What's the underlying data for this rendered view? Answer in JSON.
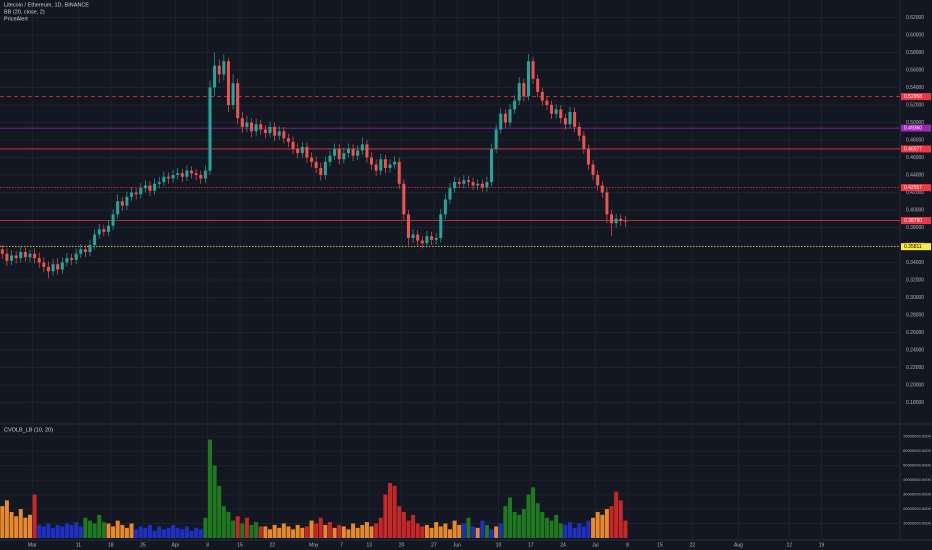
{
  "chart_data": {
    "type": "candlestick",
    "title": "Litecoin / Ethereum, 1D, BINANCE",
    "indicators": [
      "BB (20, close, 2)",
      "PriceAlert"
    ],
    "up_color": "#26a69a",
    "down_color": "#ef5350",
    "x": [
      "02-22",
      "02-23",
      "02-24",
      "02-25",
      "02-26",
      "02-27",
      "02-28",
      "03-01",
      "03-02",
      "03-03",
      "03-04",
      "03-05",
      "03-06",
      "03-07",
      "03-08",
      "03-09",
      "03-10",
      "03-11",
      "03-12",
      "03-13",
      "03-14",
      "03-15",
      "03-16",
      "03-17",
      "03-18",
      "03-19",
      "03-20",
      "03-21",
      "03-22",
      "03-23",
      "03-24",
      "03-25",
      "03-26",
      "03-27",
      "03-28",
      "03-29",
      "03-30",
      "03-31",
      "04-01",
      "04-02",
      "04-03",
      "04-04",
      "04-05",
      "04-06",
      "04-07",
      "04-08",
      "04-09",
      "04-10",
      "04-11",
      "04-12",
      "04-13",
      "04-14",
      "04-15",
      "04-16",
      "04-17",
      "04-18",
      "04-19",
      "04-20",
      "04-21",
      "04-22",
      "04-23",
      "04-24",
      "04-25",
      "04-26",
      "04-27",
      "04-28",
      "04-29",
      "04-30",
      "05-01",
      "05-02",
      "05-03",
      "05-04",
      "05-05",
      "05-06",
      "05-07",
      "05-08",
      "05-09",
      "05-10",
      "05-11",
      "05-12",
      "05-13",
      "05-14",
      "05-15",
      "05-16",
      "05-17",
      "05-18",
      "05-19",
      "05-20",
      "05-21",
      "05-22",
      "05-23",
      "05-24",
      "05-25",
      "05-26",
      "05-27",
      "05-28",
      "05-29",
      "05-30",
      "05-31",
      "06-01",
      "06-02",
      "06-03",
      "06-04",
      "06-05",
      "06-06",
      "06-07",
      "06-08",
      "06-09",
      "06-10",
      "06-11",
      "06-12",
      "06-13",
      "06-14",
      "06-15",
      "06-16",
      "06-17",
      "06-18",
      "06-19",
      "06-20",
      "06-21",
      "06-22",
      "06-23",
      "06-24",
      "06-25",
      "06-26",
      "06-27",
      "06-28",
      "06-29",
      "06-30",
      "07-01",
      "07-02",
      "07-03",
      "07-04",
      "07-05",
      "07-06",
      "07-07"
    ],
    "open": [
      0.355,
      0.35,
      0.342,
      0.348,
      0.345,
      0.352,
      0.346,
      0.35,
      0.345,
      0.34,
      0.335,
      0.33,
      0.338,
      0.332,
      0.34,
      0.345,
      0.343,
      0.35,
      0.355,
      0.352,
      0.36,
      0.372,
      0.378,
      0.375,
      0.382,
      0.395,
      0.41,
      0.405,
      0.415,
      0.42,
      0.418,
      0.425,
      0.428,
      0.422,
      0.43,
      0.432,
      0.438,
      0.436,
      0.44,
      0.442,
      0.438,
      0.445,
      0.442,
      0.44,
      0.436,
      0.445,
      0.54,
      0.565,
      0.555,
      0.57,
      0.52,
      0.545,
      0.505,
      0.495,
      0.5,
      0.49,
      0.498,
      0.492,
      0.488,
      0.495,
      0.485,
      0.49,
      0.482,
      0.478,
      0.47,
      0.465,
      0.472,
      0.46,
      0.455,
      0.448,
      0.44,
      0.455,
      0.462,
      0.47,
      0.458,
      0.465,
      0.47,
      0.462,
      0.468,
      0.475,
      0.46,
      0.452,
      0.445,
      0.458,
      0.448,
      0.452,
      0.455,
      0.43,
      0.395,
      0.368,
      0.372,
      0.365,
      0.362,
      0.37,
      0.366,
      0.368,
      0.395,
      0.412,
      0.425,
      0.432,
      0.43,
      0.434,
      0.432,
      0.428,
      0.43,
      0.426,
      0.432,
      0.47,
      0.492,
      0.51,
      0.5,
      0.515,
      0.525,
      0.545,
      0.53,
      0.57,
      0.55,
      0.535,
      0.525,
      0.52,
      0.51,
      0.515,
      0.505,
      0.498,
      0.512,
      0.495,
      0.485,
      0.47,
      0.452,
      0.44,
      0.428,
      0.42,
      0.395,
      0.385,
      0.39,
      0.388
    ],
    "high": [
      0.36,
      0.356,
      0.354,
      0.353,
      0.358,
      0.357,
      0.355,
      0.356,
      0.351,
      0.346,
      0.341,
      0.344,
      0.345,
      0.346,
      0.351,
      0.35,
      0.356,
      0.361,
      0.36,
      0.366,
      0.378,
      0.384,
      0.383,
      0.388,
      0.401,
      0.418,
      0.415,
      0.421,
      0.426,
      0.425,
      0.431,
      0.434,
      0.433,
      0.436,
      0.438,
      0.444,
      0.443,
      0.446,
      0.448,
      0.447,
      0.451,
      0.45,
      0.447,
      0.445,
      0.451,
      0.548,
      0.58,
      0.572,
      0.578,
      0.574,
      0.555,
      0.55,
      0.512,
      0.508,
      0.505,
      0.504,
      0.503,
      0.497,
      0.501,
      0.5,
      0.496,
      0.495,
      0.487,
      0.484,
      0.476,
      0.478,
      0.477,
      0.466,
      0.461,
      0.454,
      0.461,
      0.468,
      0.476,
      0.475,
      0.471,
      0.476,
      0.475,
      0.474,
      0.483,
      0.48,
      0.466,
      0.458,
      0.464,
      0.463,
      0.458,
      0.461,
      0.46,
      0.435,
      0.4,
      0.378,
      0.377,
      0.37,
      0.376,
      0.375,
      0.374,
      0.401,
      0.418,
      0.431,
      0.438,
      0.437,
      0.44,
      0.439,
      0.437,
      0.435,
      0.435,
      0.438,
      0.476,
      0.498,
      0.516,
      0.515,
      0.521,
      0.531,
      0.552,
      0.55,
      0.578,
      0.575,
      0.555,
      0.54,
      0.53,
      0.525,
      0.521,
      0.52,
      0.51,
      0.518,
      0.517,
      0.5,
      0.49,
      0.475,
      0.457,
      0.445,
      0.433,
      0.425,
      0.4,
      0.396,
      0.395,
      0.393
    ],
    "low": [
      0.344,
      0.336,
      0.337,
      0.339,
      0.34,
      0.341,
      0.34,
      0.339,
      0.334,
      0.329,
      0.322,
      0.325,
      0.326,
      0.327,
      0.335,
      0.337,
      0.338,
      0.345,
      0.346,
      0.347,
      0.355,
      0.367,
      0.37,
      0.37,
      0.377,
      0.39,
      0.399,
      0.4,
      0.41,
      0.412,
      0.413,
      0.42,
      0.416,
      0.417,
      0.425,
      0.427,
      0.43,
      0.431,
      0.435,
      0.432,
      0.433,
      0.436,
      0.434,
      0.43,
      0.431,
      0.44,
      0.53,
      0.545,
      0.548,
      0.512,
      0.515,
      0.498,
      0.488,
      0.489,
      0.483,
      0.484,
      0.486,
      0.482,
      0.483,
      0.479,
      0.48,
      0.476,
      0.472,
      0.464,
      0.459,
      0.46,
      0.454,
      0.449,
      0.442,
      0.434,
      0.435,
      0.45,
      0.457,
      0.452,
      0.453,
      0.46,
      0.456,
      0.457,
      0.463,
      0.454,
      0.446,
      0.439,
      0.44,
      0.442,
      0.443,
      0.447,
      0.424,
      0.389,
      0.36,
      0.362,
      0.359,
      0.356,
      0.357,
      0.36,
      0.361,
      0.363,
      0.39,
      0.407,
      0.42,
      0.425,
      0.425,
      0.427,
      0.423,
      0.423,
      0.421,
      0.421,
      0.427,
      0.465,
      0.487,
      0.494,
      0.495,
      0.51,
      0.52,
      0.524,
      0.525,
      0.544,
      0.529,
      0.519,
      0.514,
      0.504,
      0.505,
      0.499,
      0.492,
      0.493,
      0.489,
      0.479,
      0.464,
      0.446,
      0.434,
      0.422,
      0.414,
      0.385,
      0.37,
      0.38,
      0.382,
      0.381
    ],
    "close": [
      0.35,
      0.342,
      0.348,
      0.345,
      0.352,
      0.346,
      0.35,
      0.345,
      0.34,
      0.335,
      0.33,
      0.338,
      0.332,
      0.34,
      0.345,
      0.343,
      0.35,
      0.355,
      0.352,
      0.36,
      0.372,
      0.378,
      0.375,
      0.382,
      0.395,
      0.41,
      0.405,
      0.415,
      0.42,
      0.418,
      0.425,
      0.428,
      0.422,
      0.43,
      0.432,
      0.438,
      0.436,
      0.44,
      0.442,
      0.438,
      0.445,
      0.442,
      0.44,
      0.436,
      0.445,
      0.54,
      0.565,
      0.555,
      0.57,
      0.52,
      0.545,
      0.505,
      0.495,
      0.5,
      0.49,
      0.498,
      0.492,
      0.488,
      0.495,
      0.485,
      0.49,
      0.482,
      0.478,
      0.47,
      0.465,
      0.472,
      0.46,
      0.455,
      0.448,
      0.44,
      0.455,
      0.462,
      0.47,
      0.458,
      0.465,
      0.47,
      0.462,
      0.468,
      0.475,
      0.46,
      0.452,
      0.445,
      0.458,
      0.448,
      0.452,
      0.455,
      0.43,
      0.395,
      0.368,
      0.372,
      0.365,
      0.362,
      0.37,
      0.366,
      0.368,
      0.395,
      0.412,
      0.425,
      0.432,
      0.43,
      0.434,
      0.432,
      0.428,
      0.43,
      0.426,
      0.432,
      0.47,
      0.492,
      0.51,
      0.5,
      0.515,
      0.525,
      0.545,
      0.53,
      0.57,
      0.55,
      0.535,
      0.525,
      0.52,
      0.51,
      0.515,
      0.505,
      0.498,
      0.512,
      0.495,
      0.485,
      0.47,
      0.452,
      0.44,
      0.428,
      0.42,
      0.395,
      0.385,
      0.39,
      0.388,
      0.387
    ],
    "xlim": [
      "02-22",
      "09-05"
    ],
    "xticks": [
      {
        "value": "03-01",
        "label": "Mar"
      },
      {
        "value": "03-11",
        "label": "11"
      },
      {
        "value": "03-18",
        "label": "18"
      },
      {
        "value": "03-25",
        "label": "25"
      },
      {
        "value": "04-01",
        "label": "Apr"
      },
      {
        "value": "04-08",
        "label": "8"
      },
      {
        "value": "04-15",
        "label": "15"
      },
      {
        "value": "04-22",
        "label": "22"
      },
      {
        "value": "05-01",
        "label": "May"
      },
      {
        "value": "05-07",
        "label": "7"
      },
      {
        "value": "05-13",
        "label": "13"
      },
      {
        "value": "05-20",
        "label": "20"
      },
      {
        "value": "05-27",
        "label": "27"
      },
      {
        "value": "06-01",
        "label": "Jun"
      },
      {
        "value": "06-10",
        "label": "10"
      },
      {
        "value": "06-17",
        "label": "17"
      },
      {
        "value": "06-24",
        "label": "24"
      },
      {
        "value": "07-01",
        "label": "Jul"
      },
      {
        "value": "07-08",
        "label": "8"
      },
      {
        "value": "07-15",
        "label": "15"
      },
      {
        "value": "07-22",
        "label": "22"
      },
      {
        "value": "08-01",
        "label": "Aug"
      },
      {
        "value": "08-12",
        "label": "12"
      },
      {
        "value": "08-19",
        "label": "19"
      }
    ],
    "ylim": [
      0.16,
      0.64
    ],
    "yticks": [
      {
        "value": 0.18,
        "label": "0.18000"
      },
      {
        "value": 0.2,
        "label": "0.20000"
      },
      {
        "value": 0.22,
        "label": "0.22000"
      },
      {
        "value": 0.24,
        "label": "0.24000"
      },
      {
        "value": 0.26,
        "label": "0.26000"
      },
      {
        "value": 0.28,
        "label": "0.28000"
      },
      {
        "value": 0.3,
        "label": "0.30000"
      },
      {
        "value": 0.32,
        "label": "0.32000"
      },
      {
        "value": 0.34,
        "label": "0.34000"
      },
      {
        "value": 0.36,
        "label": "0.36000"
      },
      {
        "value": 0.38,
        "label": "0.38000"
      },
      {
        "value": 0.4,
        "label": "0.40000"
      },
      {
        "value": 0.42,
        "label": "0.42000"
      },
      {
        "value": 0.44,
        "label": "0.44000"
      },
      {
        "value": 0.46,
        "label": "0.46000"
      },
      {
        "value": 0.48,
        "label": "0.48000"
      },
      {
        "value": 0.5,
        "label": "0.50000"
      },
      {
        "value": 0.52,
        "label": "0.52000"
      },
      {
        "value": 0.54,
        "label": "0.54000"
      },
      {
        "value": 0.56,
        "label": "0.56000"
      },
      {
        "value": 0.58,
        "label": "0.58000"
      },
      {
        "value": 0.6,
        "label": "0.60000"
      },
      {
        "value": 0.62,
        "label": "0.62000"
      }
    ],
    "grid": true,
    "levels": [
      {
        "value": 0.52958,
        "color": "#f23645",
        "style": "dashed"
      },
      {
        "value": 0.4936,
        "label": "0.49360",
        "color": "#9c27b0",
        "style": "solid"
      },
      {
        "value": 0.46977,
        "color": "#f23645",
        "style": "solid"
      },
      {
        "value": 0.42557,
        "color": "#f23645",
        "style": "dotted"
      },
      {
        "value": 0.3879,
        "label": "0.38790",
        "color": "#f23645",
        "style": "solid"
      },
      {
        "value": 0.35811,
        "color": "#ffeb3b",
        "style": "dotted"
      }
    ],
    "volume": {
      "title": "CVOLB_LB (10, 20)",
      "values": [
        22000000.0,
        26000000.0,
        18000000.0,
        15000000.0,
        20000000.0,
        14000000.0,
        16000000.0,
        30000000.0,
        9000000.0,
        8000000.0,
        10000000.0,
        7000000.0,
        9000000.0,
        8000000.0,
        10000000.0,
        9000000.0,
        11000000.0,
        8000000.0,
        14000000.0,
        12000000.0,
        10000000.0,
        16000000.0,
        11000000.0,
        10000000.0,
        8000000.0,
        12000000.0,
        9000000.0,
        7000000.0,
        10000000.0,
        6000000.0,
        8000000.0,
        7000000.0,
        9000000.0,
        5000000.0,
        8000000.0,
        6000000.0,
        7000000.0,
        9000000.0,
        7000000.0,
        6000000.0,
        8000000.0,
        5000000.0,
        7000000.0,
        6000000.0,
        14000000.0,
        68000000.0,
        50000000.0,
        36000000.0,
        22000000.0,
        18000000.0,
        12000000.0,
        15000000.0,
        10000000.0,
        14000000.0,
        9000000.0,
        11000000.0,
        8000000.0,
        8000000.0,
        6000000.0,
        9000000.0,
        7000000.0,
        10000000.0,
        8000000.0,
        6000000.0,
        9000000.0,
        7000000.0,
        8000000.0,
        12000000.0,
        10000000.0,
        14000000.0,
        9000000.0,
        11000000.0,
        7000000.0,
        9000000.0,
        8000000.0,
        6000000.0,
        10000000.0,
        7000000.0,
        9000000.0,
        11000000.0,
        8000000.0,
        10000000.0,
        14000000.0,
        30000000.0,
        38000000.0,
        36000000.0,
        22000000.0,
        18000000.0,
        12000000.0,
        16000000.0,
        10000000.0,
        8000000.0,
        9000000.0,
        7000000.0,
        11000000.0,
        8000000.0,
        10000000.0,
        6000000.0,
        12000000.0,
        9000000.0,
        10000000.0,
        14000000.0,
        8000000.0,
        7000000.0,
        12000000.0,
        9000000.0,
        6000000.0,
        8000000.0,
        10000000.0,
        22000000.0,
        28000000.0,
        18000000.0,
        16000000.0,
        20000000.0,
        30000000.0,
        35000000.0,
        24000000.0,
        18000000.0,
        14000000.0,
        12000000.0,
        16000000.0,
        10000000.0,
        9000000.0,
        11000000.0,
        7000000.0,
        10000000.0,
        8000000.0,
        12000000.0,
        14000000.0,
        18000000.0,
        16000000.0,
        20000000.0,
        22000000.0,
        32000000.0,
        26000000.0,
        12000000.0
      ],
      "colors": [
        "#e8892c",
        "#e8892c",
        "#e8892c",
        "#e8892c",
        "#e8892c",
        "#e8892c",
        "#e8892c",
        "#c62828",
        "#1e2fc4",
        "#1e2fc4",
        "#1e2fc4",
        "#1e2fc4",
        "#1e2fc4",
        "#1e2fc4",
        "#1e2fc4",
        "#1e2fc4",
        "#1e2fc4",
        "#1e2fc4",
        "#1f7a1f",
        "#1f7a1f",
        "#1f7a1f",
        "#1f7a1f",
        "#1f7a1f",
        "#e8892c",
        "#e8892c",
        "#e8892c",
        "#e8892c",
        "#e8892c",
        "#e8892c",
        "#1e2fc4",
        "#1e2fc4",
        "#1e2fc4",
        "#1e2fc4",
        "#1e2fc4",
        "#1e2fc4",
        "#1e2fc4",
        "#1e2fc4",
        "#1e2fc4",
        "#1e2fc4",
        "#1e2fc4",
        "#1e2fc4",
        "#1e2fc4",
        "#1e2fc4",
        "#1e2fc4",
        "#1f7a1f",
        "#1f7a1f",
        "#1f7a1f",
        "#1f7a1f",
        "#1f7a1f",
        "#1f7a1f",
        "#1f7a1f",
        "#c62828",
        "#1f7a1f",
        "#c62828",
        "#1f7a1f",
        "#1f7a1f",
        "#c62828",
        "#e8892c",
        "#e8892c",
        "#e8892c",
        "#e8892c",
        "#e8892c",
        "#e8892c",
        "#e8892c",
        "#e8892c",
        "#e8892c",
        "#c62828",
        "#e8892c",
        "#c62828",
        "#c62828",
        "#e8892c",
        "#c62828",
        "#e8892c",
        "#c62828",
        "#e8892c",
        "#e8892c",
        "#e8892c",
        "#e8892c",
        "#e8892c",
        "#e8892c",
        "#e8892c",
        "#c62828",
        "#c62828",
        "#c62828",
        "#c62828",
        "#c62828",
        "#c62828",
        "#c62828",
        "#c62828",
        "#c62828",
        "#c62828",
        "#c62828",
        "#e8892c",
        "#e8892c",
        "#e8892c",
        "#e8892c",
        "#e8892c",
        "#e8892c",
        "#e8892c",
        "#e8892c",
        "#1e2fc4",
        "#1f7a1f",
        "#1e2fc4",
        "#e8892c",
        "#1e2fc4",
        "#1f7a1f",
        "#1e2fc4",
        "#e8892c",
        "#1e2fc4",
        "#1f7a1f",
        "#1f7a1f",
        "#1f7a1f",
        "#1f7a1f",
        "#1f7a1f",
        "#1f7a1f",
        "#1f7a1f",
        "#1f7a1f",
        "#1f7a1f",
        "#1f7a1f",
        "#1f7a1f",
        "#1f7a1f",
        "#1f7a1f",
        "#1e2fc4",
        "#1e2fc4",
        "#1e2fc4",
        "#1e2fc4",
        "#1e2fc4",
        "#1e2fc4",
        "#e8892c",
        "#e8892c",
        "#e8892c",
        "#e8892c",
        "#c62828",
        "#c62828",
        "#c62828",
        "#c62828"
      ],
      "ylim": [
        0,
        76000000
      ],
      "yticks": [
        {
          "value": 10000000,
          "label": "10000000.0000"
        },
        {
          "value": 20000000,
          "label": "20000000.0000"
        },
        {
          "value": 30000000,
          "label": "30000000.0000"
        },
        {
          "value": 40000000,
          "label": "40000000.0000"
        },
        {
          "value": 50000000,
          "label": "50000000.0000"
        },
        {
          "value": 60000000,
          "label": "60000000.0000"
        },
        {
          "value": 70000000,
          "label": "70000000.0000"
        }
      ]
    }
  }
}
